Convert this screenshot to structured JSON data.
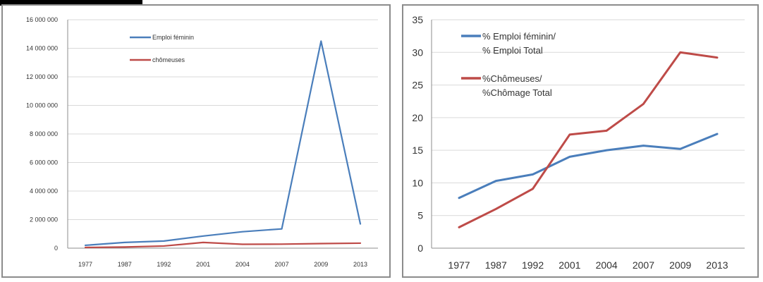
{
  "chart_data": [
    {
      "type": "line",
      "categories": [
        "1977",
        "1987",
        "1992",
        "2001",
        "2004",
        "2007",
        "2009",
        "2013"
      ],
      "y_tick_labels": [
        "0",
        "2 000 000",
        "4 000 000",
        "6 000 000",
        "8 000 000",
        "10 000 000",
        "12 000 000",
        "14 000 000",
        "16 000 000"
      ],
      "ylim": [
        0,
        16000000
      ],
      "grid": true,
      "legend_placement": "top-center",
      "series": [
        {
          "name": "Emploi féminin",
          "color": "#4a7ebb",
          "values": [
            200000,
            400000,
            500000,
            850000,
            1150000,
            1350000,
            14500000,
            1700000
          ]
        },
        {
          "name": "chômeuses",
          "color": "#be4b48",
          "values": [
            50000,
            80000,
            150000,
            400000,
            270000,
            280000,
            320000,
            350000
          ]
        }
      ]
    },
    {
      "type": "line",
      "categories": [
        "1977",
        "1987",
        "1992",
        "2001",
        "2004",
        "2007",
        "2009",
        "2013"
      ],
      "y_tick_labels": [
        "0",
        "5",
        "10",
        "15",
        "20",
        "25",
        "30",
        "35"
      ],
      "ylim": [
        0,
        35
      ],
      "grid": true,
      "legend_placement": "top-left",
      "series": [
        {
          "name_lines": [
            "% Emploi féminin/",
            "% Emploi Total"
          ],
          "color": "#4a7ebb",
          "values": [
            7.7,
            10.3,
            11.3,
            14.0,
            15.0,
            15.7,
            15.2,
            17.5
          ]
        },
        {
          "name_lines": [
            "%Chômeuses/",
            "%Chômage Total"
          ],
          "color": "#be4b48",
          "values": [
            3.2,
            6.0,
            9.1,
            17.4,
            18.0,
            22.1,
            30.0,
            29.2
          ]
        }
      ]
    }
  ]
}
